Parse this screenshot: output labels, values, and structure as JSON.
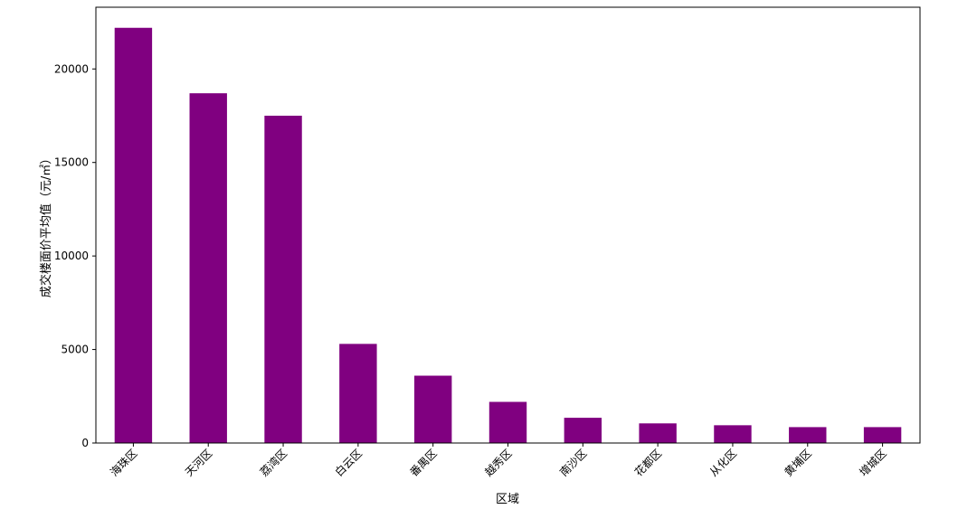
{
  "chart_data": {
    "type": "bar",
    "categories": [
      "海珠区",
      "天河区",
      "荔湾区",
      "白云区",
      "番禺区",
      "越秀区",
      "南沙区",
      "花都区",
      "从化区",
      "黄埔区",
      "增城区"
    ],
    "values": [
      22200,
      18700,
      17500,
      5300,
      3600,
      2200,
      1350,
      1050,
      950,
      850,
      850
    ],
    "title": "",
    "xlabel": "区域",
    "ylabel": "成交楼面价平均值（元/㎡）",
    "ylim": [
      0,
      23300
    ],
    "yticks": [
      0,
      5000,
      10000,
      15000,
      20000
    ],
    "bar_color": "#800080",
    "grid": false
  }
}
